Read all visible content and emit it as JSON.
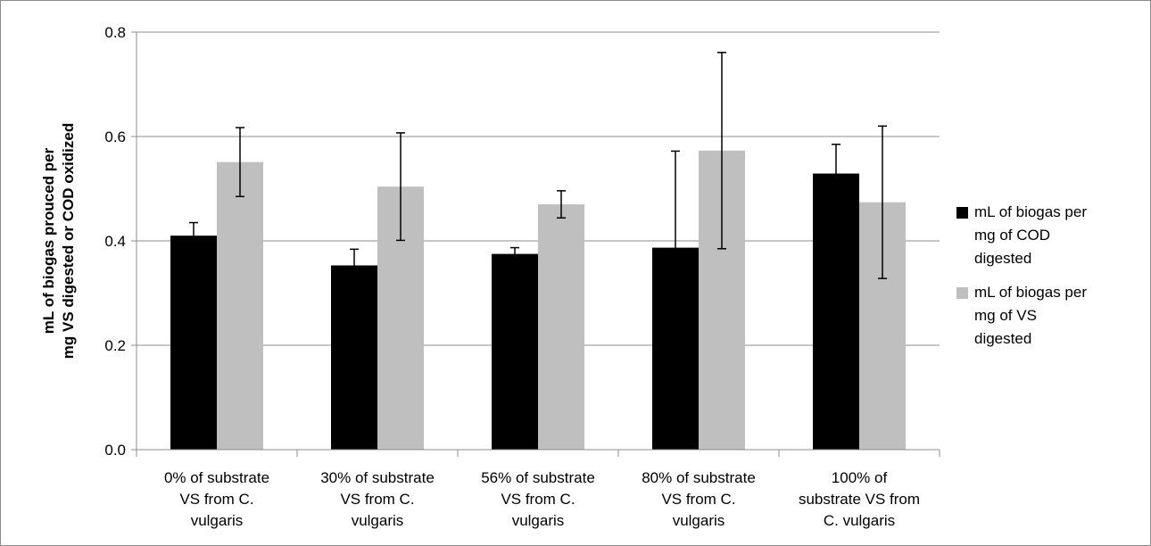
{
  "chart_data": {
    "type": "bar",
    "categories": [
      "0% of substrate VS from C. vulgaris",
      "30% of substrate VS from C. vulgaris",
      "56% of substrate VS from C. vulgaris",
      "80% of substrate VS from C. vulgaris",
      "100% of substrate VS from C. vulgaris"
    ],
    "category_label_lines": [
      [
        "0% of substrate",
        "VS from C.",
        "vulgaris"
      ],
      [
        "30% of substrate",
        "VS from C.",
        "vulgaris"
      ],
      [
        "56% of substrate",
        "VS from C.",
        "vulgaris"
      ],
      [
        "80% of substrate",
        "VS from C.",
        "vulgaris"
      ],
      [
        "100% of",
        "substrate VS from",
        "C. vulgaris"
      ]
    ],
    "series": [
      {
        "name": "mL of biogas per mg of COD digested",
        "legend_lines": [
          "mL of biogas per",
          "mg of COD",
          "digested"
        ],
        "color": "#000000",
        "values": [
          0.41,
          0.353,
          0.375,
          0.387,
          0.529
        ],
        "errors": [
          0.025,
          0.031,
          0.012,
          0.185,
          0.056
        ]
      },
      {
        "name": "mL of biogas per mg of VS digested",
        "legend_lines": [
          "mL of biogas per",
          "mg of VS",
          "digested"
        ],
        "color": "#bfbfbf",
        "values": [
          0.551,
          0.504,
          0.47,
          0.573,
          0.474
        ],
        "errors": [
          0.066,
          0.103,
          0.026,
          0.188,
          0.146
        ]
      }
    ],
    "ylabel_lines": [
      "mL of biogas prouced per",
      "mg VS digested or COD oxidized"
    ],
    "ylim": [
      0,
      0.8
    ],
    "yticks": [
      "0.0",
      "0.2",
      "0.4",
      "0.6",
      "0.8"
    ],
    "ytick_values": [
      0,
      0.2,
      0.4,
      0.6,
      0.8
    ],
    "grid": true,
    "legend_position": "right"
  }
}
